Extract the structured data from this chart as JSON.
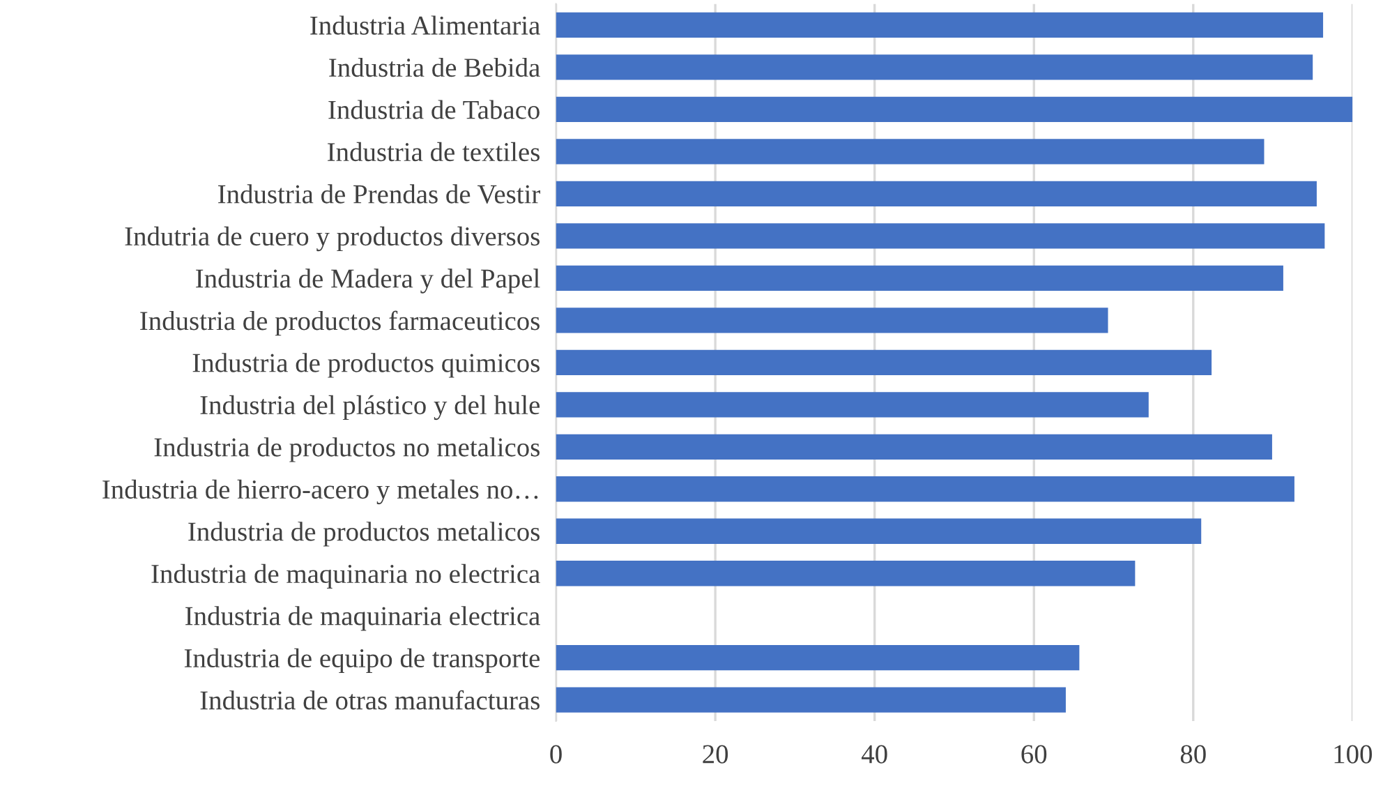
{
  "chart_data": {
    "type": "bar",
    "orientation": "horizontal",
    "categories": [
      "Industria Alimentaria",
      "Industria de Bebida",
      "Industria de Tabaco",
      "Industria de textiles",
      "Industria de Prendas de Vestir",
      "Indutria de cuero y productos diversos",
      "Industria de Madera y del Papel",
      "Industria de productos farmaceuticos",
      "Industria de productos quimicos",
      "Industria del plástico y del hule",
      "Industria de productos no metalicos",
      "Industria de hierro-acero y metales no…",
      "Industria de productos metalicos",
      "Industria de maquinaria no electrica",
      "Industria de maquinaria electrica",
      "Industria de equipo de transporte",
      "Industria de otras manufacturas"
    ],
    "values": [
      96.3,
      95.0,
      100,
      88.9,
      95.5,
      96.5,
      91.3,
      69.3,
      82.3,
      74.4,
      89.9,
      92.7,
      81.0,
      72.7,
      null,
      65.7,
      64.0
    ],
    "color": "#4472c4",
    "xlim": [
      0,
      100
    ],
    "xticks": [
      0,
      20,
      40,
      60,
      80,
      100
    ],
    "grid": "x"
  }
}
